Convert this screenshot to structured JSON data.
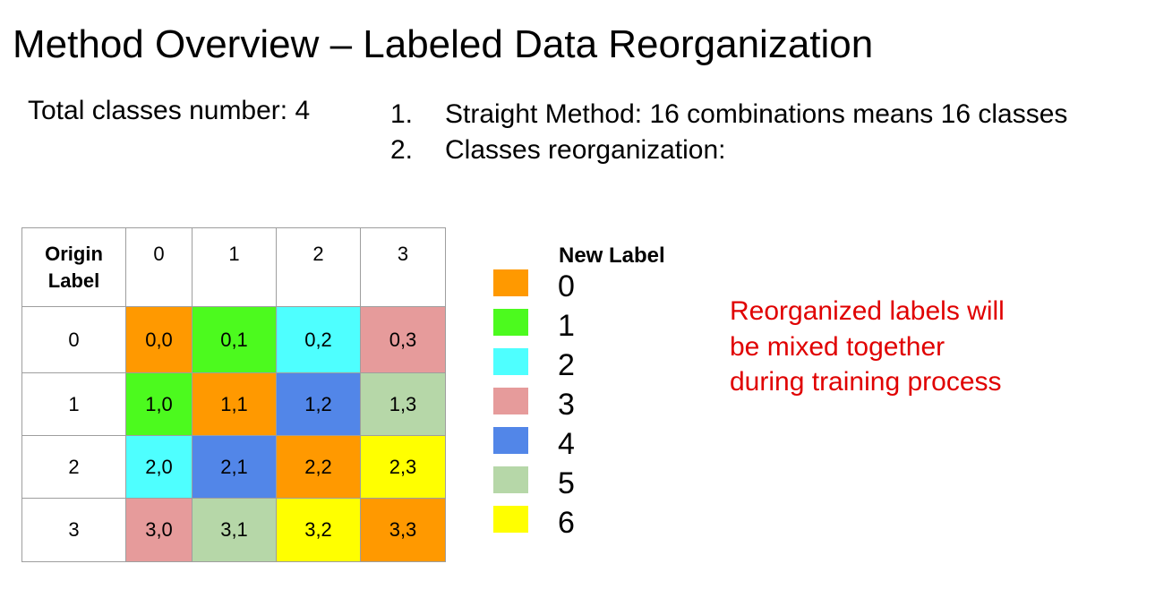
{
  "title": "Method Overview – Labeled Data Reorganization",
  "total_classes": "Total classes number: 4",
  "steps": [
    {
      "num": "1.",
      "text": "Straight Method: 16 combinations means 16 classes"
    },
    {
      "num": "2.",
      "text": "Classes reorganization:"
    }
  ],
  "table": {
    "corner_line1": "Origin",
    "corner_line2": "Label",
    "col_headers": [
      "0",
      "1",
      "2",
      "3"
    ],
    "rows": [
      {
        "label": "0",
        "cells": [
          {
            "text": "0,0",
            "color": "#ff9900"
          },
          {
            "text": "0,1",
            "color": "#4cfa1e"
          },
          {
            "text": "0,2",
            "color": "#4effff"
          },
          {
            "text": "0,3",
            "color": "#e69b9b"
          }
        ]
      },
      {
        "label": "1",
        "cells": [
          {
            "text": "1,0",
            "color": "#4cfa1e"
          },
          {
            "text": "1,1",
            "color": "#ff9900"
          },
          {
            "text": "1,2",
            "color": "#5286e8"
          },
          {
            "text": "1,3",
            "color": "#b6d7a8"
          }
        ]
      },
      {
        "label": "2",
        "cells": [
          {
            "text": "2,0",
            "color": "#4effff"
          },
          {
            "text": "2,1",
            "color": "#5286e8"
          },
          {
            "text": "2,2",
            "color": "#ff9900"
          },
          {
            "text": "2,3",
            "color": "#ffff00"
          }
        ]
      },
      {
        "label": "3",
        "cells": [
          {
            "text": "3,0",
            "color": "#e69b9b"
          },
          {
            "text": "3,1",
            "color": "#b6d7a8"
          },
          {
            "text": "3,2",
            "color": "#ffff00"
          },
          {
            "text": "3,3",
            "color": "#ff9900"
          }
        ]
      }
    ]
  },
  "legend": {
    "title": "New Label",
    "items": [
      {
        "label": "0",
        "color": "#ff9900"
      },
      {
        "label": "1",
        "color": "#4cfa1e"
      },
      {
        "label": "2",
        "color": "#4effff"
      },
      {
        "label": "3",
        "color": "#e69b9b"
      },
      {
        "label": "4",
        "color": "#5286e8"
      },
      {
        "label": "5",
        "color": "#b6d7a8"
      },
      {
        "label": "6",
        "color": "#ffff00"
      }
    ]
  },
  "note": {
    "lines": [
      "Reorganized labels will",
      "be mixed together",
      "during training process"
    ],
    "color": "#e00000"
  }
}
